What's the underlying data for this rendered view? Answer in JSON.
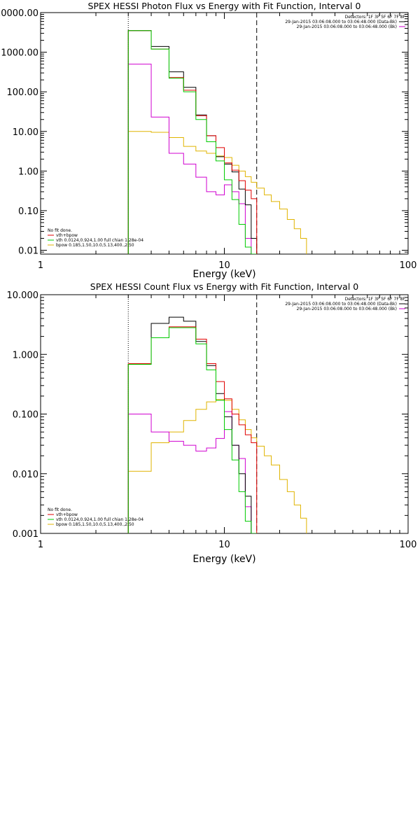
{
  "colors": {
    "observed": "#000000",
    "total": "#e00000",
    "vth": "#00cc00",
    "bpow": "#e0b400",
    "background": "#d000d0"
  },
  "chart_data": [
    {
      "type": "line",
      "title": "SPEX HESSI Photon Flux vs Energy with Fit Function, Interval 0",
      "xlabel": "Energy (keV)",
      "ylabel": "",
      "xscale": "log",
      "yscale": "log",
      "xlim": [
        1,
        100
      ],
      "ylim": [
        0.008,
        10000
      ],
      "x_ticks": [
        1,
        10,
        100
      ],
      "x_tick_labels": [
        "1",
        "10",
        "100"
      ],
      "y_ticks": [
        0.01,
        0.1,
        1,
        10,
        100,
        1000,
        10000
      ],
      "y_tick_labels": [
        "0.01",
        "0.10",
        "1.00",
        "10.00",
        "100.00",
        "1000.00",
        "10000.00"
      ],
      "dotted_line_x": 3,
      "dashed_line_x": 15,
      "header": {
        "detectors": "Detectors: 1F 3F 5F 6F 7F 8F",
        "line1": "29-Jan-2015 03:06:08.000 to 03:06:48.000 (Data-Bk)",
        "line2": "29-Jan-2015 03:06:08.000 to 03:06:48.000 (Bk)"
      },
      "legend": {
        "status": "No fit done.",
        "entries": [
          {
            "label": "vth+bpow",
            "color_key": "total"
          },
          {
            "label": "vth 0.0124,0.924,1.00  full chian 1.28e-04",
            "color_key": "vth"
          },
          {
            "label": "bpow 0.185,1.50,10.0,5.13,400.,2.50",
            "color_key": "bpow"
          }
        ]
      },
      "edges": [
        3,
        4,
        5,
        6,
        7,
        8,
        9,
        10,
        11,
        12,
        13,
        14,
        15
      ],
      "series": [
        {
          "color_key": "observed",
          "values": [
            3500,
            1400,
            320,
            130,
            26,
            7.8,
            2.3,
            1.5,
            0.95,
            0.35,
            0.14,
            0.02
          ]
        },
        {
          "color_key": "total",
          "values": [
            3500,
            1200,
            230,
            110,
            25,
            7.8,
            3.9,
            1.6,
            1.05,
            0.57,
            0.33,
            0.2
          ]
        },
        {
          "color_key": "vth",
          "values": [
            3500,
            1200,
            220,
            100,
            20,
            5.5,
            1.8,
            0.6,
            0.19,
            0.045,
            0.012,
            0.002
          ]
        },
        {
          "color_key": "background",
          "values": [
            500,
            23,
            2.8,
            1.5,
            0.7,
            0.3,
            0.25,
            0.45,
            0.3,
            0.15,
            0.02,
            0.008
          ]
        }
      ],
      "bpow": {
        "edges": [
          3,
          4,
          5,
          6,
          7,
          8,
          9,
          10,
          11,
          12,
          13,
          14,
          15,
          16.5,
          18,
          20,
          22,
          24,
          26,
          28
        ],
        "values": [
          10,
          9.5,
          7,
          4.2,
          3.2,
          2.8,
          2.4,
          2.2,
          1.4,
          1.0,
          0.72,
          0.52,
          0.37,
          0.25,
          0.17,
          0.11,
          0.06,
          0.035,
          0.02
        ]
      }
    },
    {
      "type": "line",
      "title": "SPEX HESSI Count Flux vs Energy with Fit Function, Interval 0",
      "xlabel": "Energy (keV)",
      "ylabel": "",
      "xscale": "log",
      "yscale": "log",
      "xlim": [
        1,
        100
      ],
      "ylim": [
        0.001,
        10
      ],
      "x_ticks": [
        1,
        10,
        100
      ],
      "x_tick_labels": [
        "1",
        "10",
        "100"
      ],
      "y_ticks": [
        0.001,
        0.01,
        0.1,
        1,
        10
      ],
      "y_tick_labels": [
        "0.001",
        "0.010",
        "0.100",
        "1.000",
        "10.000"
      ],
      "dotted_line_x": 3,
      "dashed_line_x": 15,
      "header": {
        "detectors": "Detectors: 1F 3F 5F 6F 7F 8F",
        "line1": "29-Jan-2015 03:06:08.000 to 03:06:48.000 (Data-Bk)",
        "line2": "29-Jan-2015 03:06:08.000 to 03:06:48.000 (Bk)"
      },
      "legend": {
        "status": "No fit done.",
        "entries": [
          {
            "label": "vth+bpow",
            "color_key": "total"
          },
          {
            "label": "vth 0.0124,0.924,1.00  full chian 1.28e-04",
            "color_key": "vth"
          },
          {
            "label": "bpow 0.185,1.50,10.0,5.13,400.,2.50",
            "color_key": "bpow"
          }
        ]
      },
      "edges": [
        3,
        4,
        5,
        6,
        7,
        8,
        9,
        10,
        11,
        12,
        13,
        14,
        15
      ],
      "series": [
        {
          "color_key": "observed",
          "values": [
            0.68,
            3.3,
            4.2,
            3.6,
            1.65,
            0.65,
            0.22,
            0.09,
            0.03,
            0.01,
            0.0042,
            0.0009
          ]
        },
        {
          "color_key": "total",
          "values": [
            0.7,
            1.9,
            2.9,
            2.9,
            1.8,
            0.7,
            0.35,
            0.18,
            0.1,
            0.066,
            0.045,
            0.033
          ]
        },
        {
          "color_key": "vth",
          "values": [
            0.68,
            1.9,
            2.8,
            2.8,
            1.5,
            0.55,
            0.17,
            0.055,
            0.017,
            0.005,
            0.0016,
            0.0004
          ]
        },
        {
          "color_key": "background",
          "values": [
            0.1,
            0.05,
            0.035,
            0.03,
            0.024,
            0.027,
            0.039,
            0.11,
            0.03,
            0.018,
            0.0028,
            0.001
          ]
        }
      ],
      "bpow": {
        "edges": [
          3,
          4,
          5,
          6,
          7,
          8,
          9,
          10,
          11,
          12,
          13,
          14,
          15,
          16.5,
          18,
          20,
          22,
          24,
          26,
          28
        ],
        "values": [
          0.011,
          0.033,
          0.05,
          0.078,
          0.12,
          0.16,
          0.175,
          0.17,
          0.12,
          0.08,
          0.055,
          0.04,
          0.029,
          0.02,
          0.014,
          0.008,
          0.005,
          0.003,
          0.0018
        ]
      }
    }
  ]
}
